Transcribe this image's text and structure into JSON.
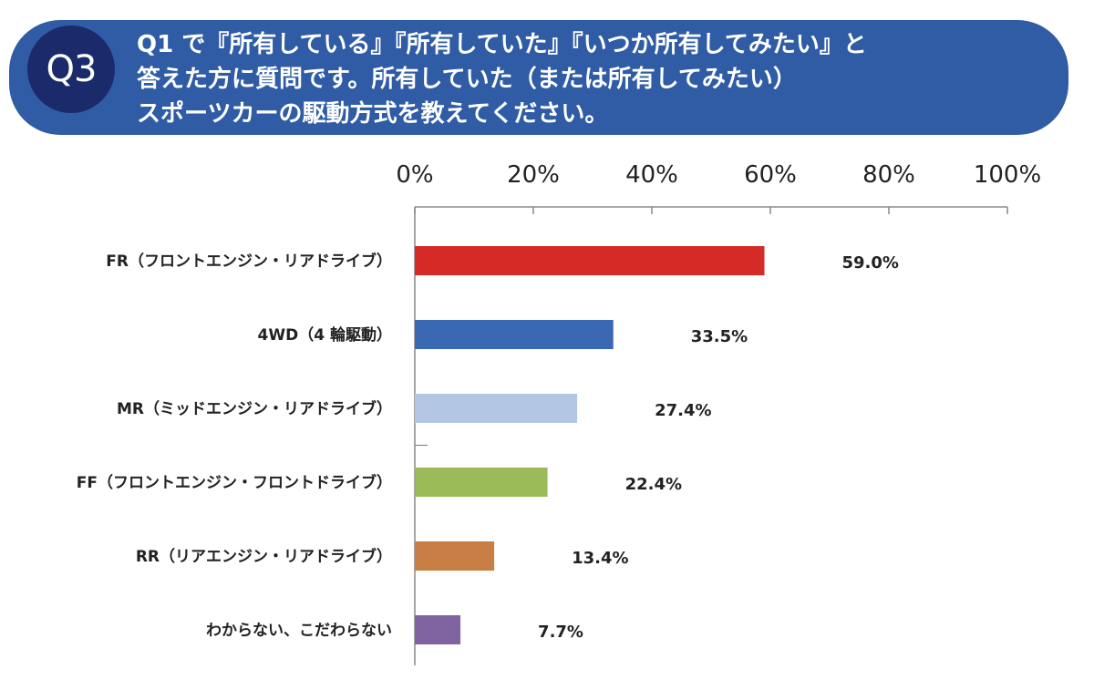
{
  "header": {
    "badge": "Q3",
    "lines": [
      "Q1 で『所有している』『所有していた』『いつか所有してみたい』と",
      "答えた方に質問です。所有していた（または所有してみたい）",
      "スポーツカーの駆動方式を教えてください。"
    ]
  },
  "chart_data": {
    "type": "bar",
    "orientation": "horizontal",
    "categories": [
      "FR（フロントエンジン・リアドライブ）",
      "4WD（4 輪駆動）",
      "MR（ミッドエンジン・リアドライブ）",
      "FF（フロントエンジン・フロントドライブ）",
      "RR（リアエンジン・リアドライブ）",
      "わからない、こだわらない"
    ],
    "values": [
      59.0,
      33.5,
      27.4,
      22.4,
      13.4,
      7.7
    ],
    "value_labels": [
      "59.0%",
      "33.5%",
      "27.4%",
      "22.4%",
      "13.4%",
      "7.7%"
    ],
    "colors": [
      "#d52b26",
      "#3a68b3",
      "#b3c6e4",
      "#9bbb59",
      "#c87d45",
      "#8064a2"
    ],
    "xlim": [
      0,
      100
    ],
    "xticks": [
      0,
      20,
      40,
      60,
      80,
      100
    ],
    "xtick_labels": [
      "0%",
      "20%",
      "40%",
      "60%",
      "80%",
      "100%"
    ],
    "axis_position": "top",
    "grid": false
  }
}
